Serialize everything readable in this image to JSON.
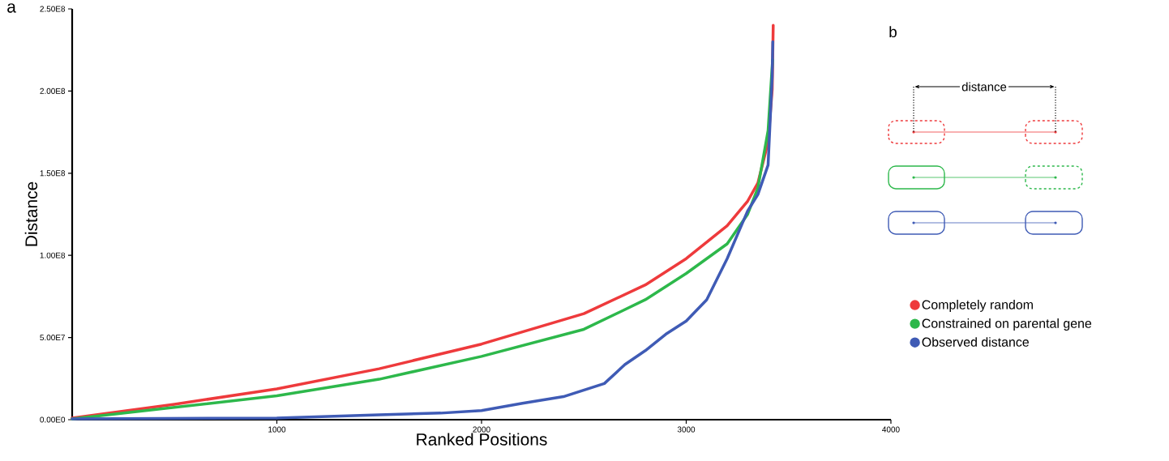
{
  "chart_data": {
    "type": "line",
    "xlabel": "Ranked Positions",
    "ylabel": "Distance",
    "xlim": [
      0,
      4000
    ],
    "ylim": [
      0,
      250000000
    ],
    "xticks": [
      1000,
      2000,
      3000,
      4000
    ],
    "yticks": [
      {
        "value": 0,
        "label": "0.00E0"
      },
      {
        "value": 50000000,
        "label": "5.00E7"
      },
      {
        "value": 100000000,
        "label": "1.00E8"
      },
      {
        "value": 150000000,
        "label": "1.50E8"
      },
      {
        "value": 200000000,
        "label": "2.00E8"
      },
      {
        "value": 250000000,
        "label": "2.50E8"
      }
    ],
    "legend": "right",
    "grid": false,
    "annotations": [
      "a",
      "b",
      "distance"
    ],
    "series": [
      {
        "name": "Completely random",
        "color": "#ee3a3c",
        "x": [
          0,
          500,
          1000,
          1500,
          2000,
          2500,
          2800,
          3000,
          3200,
          3300,
          3350,
          3400,
          3420,
          3425
        ],
        "values": [
          1000000,
          9400000,
          18700000,
          31000000,
          46000000,
          64500000,
          82000000,
          98000000,
          118000000,
          133000000,
          144000000,
          169000000,
          201000000,
          240000000
        ]
      },
      {
        "name": "Constrained on parental gene",
        "color": "#2db84b",
        "x": [
          0,
          500,
          1000,
          1500,
          2000,
          2500,
          2800,
          3000,
          3200,
          3300,
          3350,
          3400,
          3422
        ],
        "values": [
          500000,
          7500000,
          14500000,
          24600000,
          38500000,
          55000000,
          73000000,
          89000000,
          107000000,
          125000000,
          141000000,
          176000000,
          219000000
        ]
      },
      {
        "name": "Observed distance",
        "color": "#3f5bb5",
        "x": [
          0,
          1000,
          1500,
          1800,
          2000,
          2200,
          2400,
          2600,
          2700,
          2800,
          2900,
          3000,
          3100,
          3200,
          3300,
          3350,
          3400,
          3420,
          3423
        ],
        "values": [
          500000,
          1000000,
          3000000,
          4000000,
          5500000,
          10000000,
          14000000,
          22000000,
          33500000,
          42000000,
          52000000,
          60000000,
          73000000,
          98000000,
          127000000,
          137000000,
          155000000,
          209000000,
          230000000
        ]
      }
    ]
  }
}
